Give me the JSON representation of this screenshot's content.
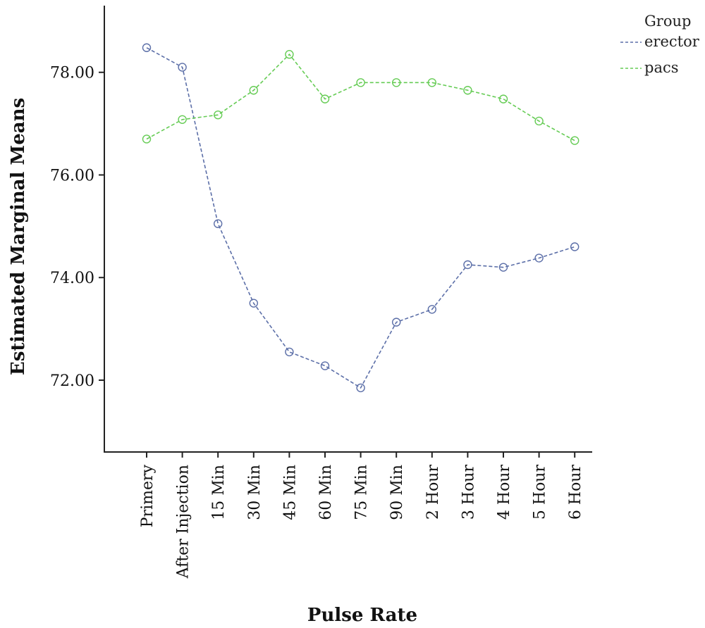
{
  "chart_data": {
    "type": "line",
    "xlabel": "Pulse Rate",
    "ylabel": "Estimated Marginal Means",
    "categories": [
      "Primery",
      "After Injection",
      "15 Min",
      "30 Min",
      "45 Min",
      "60 Min",
      "75 Min",
      "90 Min",
      "2 Hour",
      "3 Hour",
      "4 Hour",
      "5 Hour",
      "6 Hour"
    ],
    "ylim": [
      70.6,
      79.3
    ],
    "yticks": [
      72,
      74,
      76,
      78
    ],
    "ytick_labels": [
      "72.00",
      "74.00",
      "76.00",
      "78.00"
    ],
    "grid": false,
    "legend": {
      "title": "Group",
      "position": "top-right"
    },
    "series": [
      {
        "name": "erector",
        "color": "#5c6fa8",
        "values": [
          78.48,
          78.1,
          75.05,
          73.5,
          72.55,
          72.28,
          71.85,
          73.13,
          73.38,
          74.25,
          74.2,
          74.38,
          74.6
        ]
      },
      {
        "name": "pacs",
        "color": "#66cc55",
        "values": [
          76.7,
          77.08,
          77.17,
          77.65,
          78.35,
          77.48,
          77.8,
          77.8,
          77.8,
          77.65,
          77.48,
          77.05,
          76.67
        ]
      }
    ]
  }
}
